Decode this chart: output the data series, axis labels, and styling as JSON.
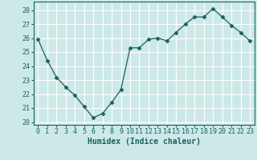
{
  "x": [
    0,
    1,
    2,
    3,
    4,
    5,
    6,
    7,
    8,
    9,
    10,
    11,
    12,
    13,
    14,
    15,
    16,
    17,
    18,
    19,
    20,
    21,
    22,
    23
  ],
  "y": [
    25.9,
    24.4,
    23.2,
    22.5,
    21.9,
    21.1,
    20.3,
    20.6,
    21.4,
    22.3,
    25.3,
    25.3,
    25.9,
    26.0,
    25.8,
    26.4,
    27.0,
    27.5,
    27.5,
    28.1,
    27.5,
    26.9,
    26.4,
    25.8
  ],
  "line_color": "#1a6060",
  "marker": "D",
  "marker_size": 2.5,
  "bg_color": "#cce9e8",
  "grid_color": "#ffffff",
  "tick_color": "#1a6060",
  "label_color": "#1a6060",
  "xlabel": "Humidex (Indice chaleur)",
  "ylim": [
    19.8,
    28.6
  ],
  "yticks": [
    20,
    21,
    22,
    23,
    24,
    25,
    26,
    27,
    28
  ],
  "font_family": "monospace",
  "tick_fontsize": 6,
  "xlabel_fontsize": 7
}
